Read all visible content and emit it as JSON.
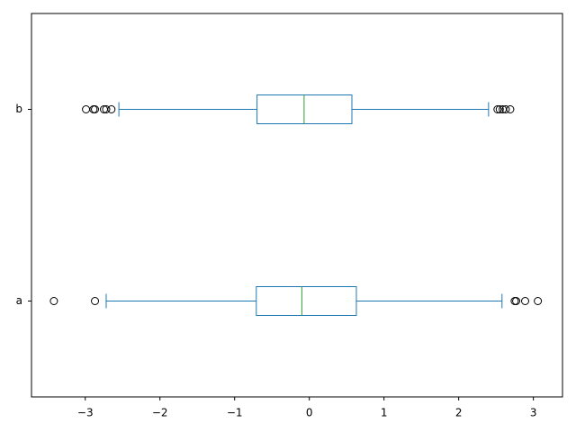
{
  "chart_data": {
    "type": "boxplot",
    "orientation": "horizontal",
    "categories": [
      "a",
      "b"
    ],
    "color": "#1f77b4",
    "median_color": "#2ca02c",
    "boxes": [
      {
        "whislo": -2.72,
        "q1": -0.71,
        "med": -0.1,
        "q3": 0.63,
        "whishi": 2.58,
        "fliers": [
          -3.42,
          -2.87,
          2.75,
          2.77,
          2.89,
          3.06
        ]
      },
      {
        "whislo": -2.55,
        "q1": -0.7,
        "med": -0.07,
        "q3": 0.57,
        "whishi": 2.4,
        "fliers": [
          -2.99,
          -2.89,
          -2.87,
          -2.75,
          -2.72,
          -2.65,
          2.52,
          2.55,
          2.59,
          2.63,
          2.69
        ]
      }
    ],
    "xlim": [
      -3.72,
      3.39
    ],
    "xticks": [
      {
        "value": -3,
        "label": "−3"
      },
      {
        "value": -2,
        "label": "−2"
      },
      {
        "value": -1,
        "label": "−1"
      },
      0,
      1,
      2,
      3
    ],
    "grid": false
  }
}
